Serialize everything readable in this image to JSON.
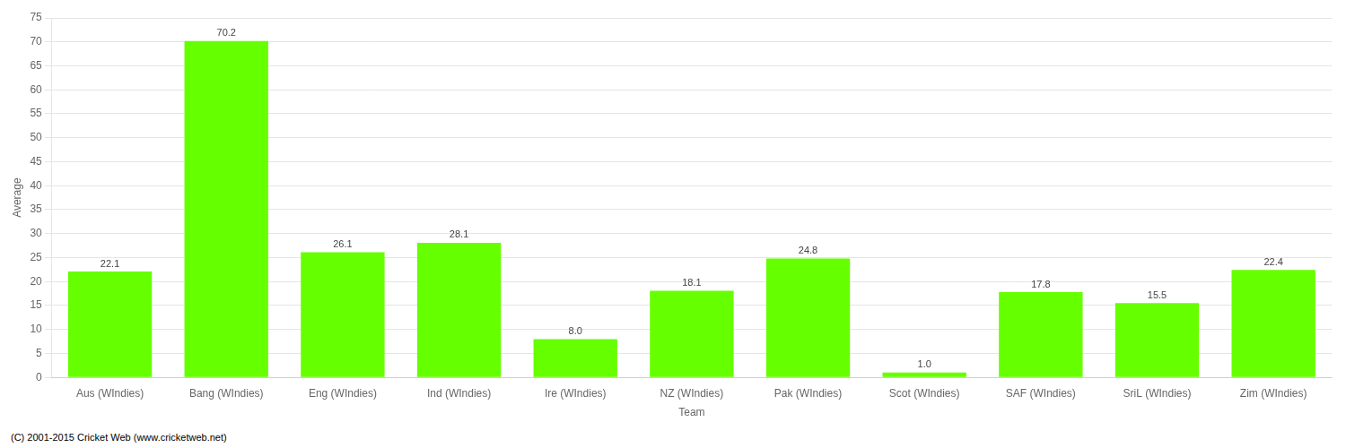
{
  "chart_data": {
    "type": "bar",
    "categories": [
      "Aus (WIndies)",
      "Bang (WIndies)",
      "Eng (WIndies)",
      "Ind (WIndies)",
      "Ire (WIndies)",
      "NZ (WIndies)",
      "Pak (WIndies)",
      "Scot (WIndies)",
      "SAF (WIndies)",
      "SriL (WIndies)",
      "Zim (WIndies)"
    ],
    "values": [
      22.1,
      70.2,
      26.1,
      28.1,
      8.0,
      18.1,
      24.8,
      1.0,
      17.8,
      15.5,
      22.4
    ],
    "value_labels": [
      "22.1",
      "70.2",
      "26.1",
      "28.1",
      "8.0",
      "18.1",
      "24.8",
      "1.0",
      "17.8",
      "15.5",
      "22.4"
    ],
    "data_labels": true,
    "color": "#66ff00",
    "xlabel": "Team",
    "ylabel": "Average",
    "ylim": [
      0,
      75
    ],
    "yticks": [
      0,
      5,
      10,
      15,
      20,
      25,
      30,
      35,
      40,
      45,
      50,
      55,
      60,
      65,
      70,
      75
    ],
    "grid": true,
    "annotations": [
      "(C) 2001-2015 Cricket Web (www.cricketweb.net)"
    ]
  }
}
